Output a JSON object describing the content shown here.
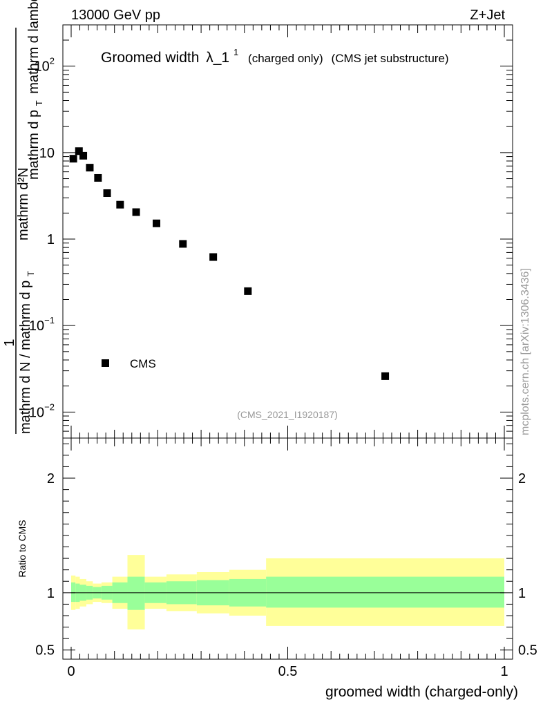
{
  "header": {
    "energy_label": "13000 GeV pp",
    "process_label": "Z+Jet"
  },
  "side_label": "mcplots.cern.ch [arXiv:1306.3436]",
  "watermark": "(CMS_2021_I1920187)",
  "colors": {
    "ratio_inner": "#99ff99",
    "ratio_outer": "#ffff99",
    "marker": "#000000",
    "watermark": "#999999"
  },
  "chart_data": [
    {
      "type": "scatter",
      "title": "Groomed width",
      "title_symbol": "λ_1",
      "title_superscript": "1",
      "title_suffix_1": "(charged only)",
      "title_suffix_2": "(CMS jet substructure)",
      "ylabel_numerator": "mathrm d²N",
      "ylabel_numerator_right": "mathrm d p",
      "ylabel_numerator_sub": "T",
      "ylabel_numerator_tail": "mathrm d lambda",
      "ylabel_one": "1",
      "ylabel_denominator": "mathrm d N / mathrm d p",
      "ylabel_denominator_sub": "T",
      "yscale": "log",
      "ylim": [
        0.005,
        300
      ],
      "xlim": [
        -0.02,
        1.02
      ],
      "ytick_labels": [
        {
          "base": "10",
          "exp": "2",
          "value": 100
        },
        {
          "base": "10",
          "exp": "",
          "value": 10
        },
        {
          "base": "1",
          "exp": "",
          "value": 1
        },
        {
          "base": "10",
          "exp": "−1",
          "value": 0.1
        },
        {
          "base": "10",
          "exp": "−2",
          "value": 0.01
        }
      ],
      "legend": {
        "label": "CMS",
        "position": "lower-left"
      },
      "series": [
        {
          "name": "CMS",
          "x": [
            0.005,
            0.018,
            0.028,
            0.043,
            0.062,
            0.083,
            0.113,
            0.15,
            0.197,
            0.258,
            0.328,
            0.408,
            0.725
          ],
          "y": [
            8.5,
            10.4,
            9.2,
            6.7,
            5.1,
            3.4,
            2.5,
            2.05,
            1.52,
            0.88,
            0.62,
            0.25,
            0.026
          ]
        }
      ]
    },
    {
      "type": "area",
      "ylabel": "Ratio to CMS",
      "xlabel": "groomed width (charged-only)",
      "ylim": [
        0.42,
        2.35
      ],
      "xlim": [
        -0.02,
        1.02
      ],
      "xtick_labels": [
        {
          "label": "0",
          "value": 0
        },
        {
          "label": "0.5",
          "value": 0.5
        },
        {
          "label": "1",
          "value": 1
        }
      ],
      "ytick_labels": [
        {
          "label": "2",
          "value": 2
        },
        {
          "label": "1",
          "value": 1
        },
        {
          "label": "0.5",
          "value": 0.5
        }
      ],
      "reference_line": 1,
      "bands": [
        {
          "x0": 0.0,
          "x1": 0.01,
          "inner_lo": 0.92,
          "inner_hi": 1.09,
          "outer_lo": 0.85,
          "outer_hi": 1.15
        },
        {
          "x0": 0.01,
          "x1": 0.02,
          "inner_lo": 0.92,
          "inner_hi": 1.08,
          "outer_lo": 0.86,
          "outer_hi": 1.14
        },
        {
          "x0": 0.02,
          "x1": 0.035,
          "inner_lo": 0.93,
          "inner_hi": 1.07,
          "outer_lo": 0.88,
          "outer_hi": 1.12
        },
        {
          "x0": 0.035,
          "x1": 0.05,
          "inner_lo": 0.94,
          "inner_hi": 1.06,
          "outer_lo": 0.9,
          "outer_hi": 1.1
        },
        {
          "x0": 0.05,
          "x1": 0.07,
          "inner_lo": 0.95,
          "inner_hi": 1.05,
          "outer_lo": 0.92,
          "outer_hi": 1.08
        },
        {
          "x0": 0.07,
          "x1": 0.095,
          "inner_lo": 0.94,
          "inner_hi": 1.06,
          "outer_lo": 0.91,
          "outer_hi": 1.09
        },
        {
          "x0": 0.095,
          "x1": 0.13,
          "inner_lo": 0.91,
          "inner_hi": 1.09,
          "outer_lo": 0.86,
          "outer_hi": 1.14
        },
        {
          "x0": 0.13,
          "x1": 0.17,
          "inner_lo": 0.85,
          "inner_hi": 1.14,
          "outer_lo": 0.68,
          "outer_hi": 1.33
        },
        {
          "x0": 0.17,
          "x1": 0.22,
          "inner_lo": 0.91,
          "inner_hi": 1.09,
          "outer_lo": 0.86,
          "outer_hi": 1.14
        },
        {
          "x0": 0.22,
          "x1": 0.29,
          "inner_lo": 0.9,
          "inner_hi": 1.1,
          "outer_lo": 0.84,
          "outer_hi": 1.16
        },
        {
          "x0": 0.29,
          "x1": 0.365,
          "inner_lo": 0.89,
          "inner_hi": 1.11,
          "outer_lo": 0.82,
          "outer_hi": 1.18
        },
        {
          "x0": 0.365,
          "x1": 0.45,
          "inner_lo": 0.88,
          "inner_hi": 1.12,
          "outer_lo": 0.8,
          "outer_hi": 1.2
        },
        {
          "x0": 0.45,
          "x1": 1.0,
          "inner_lo": 0.87,
          "inner_hi": 1.14,
          "outer_lo": 0.71,
          "outer_hi": 1.3
        }
      ]
    }
  ]
}
